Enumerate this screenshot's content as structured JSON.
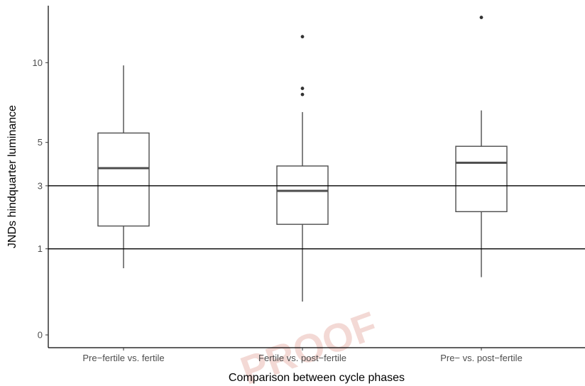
{
  "chart_data": {
    "type": "box",
    "title": "",
    "xlabel": "Comparison between cycle phases",
    "ylabel": "JNDs hindquarter luminance",
    "ylim": [
      -0.5,
      14.5
    ],
    "yticks": [
      0,
      1,
      3,
      5,
      10
    ],
    "grid": false,
    "legend": "none",
    "reference_lines": [
      1,
      3
    ],
    "watermark": "PROOF",
    "categories": [
      "Pre−fertile vs. fertile",
      "Fertile vs. post−fertile",
      "Pre− vs. post−fertile"
    ],
    "boxes": [
      {
        "whisker_low": 0.6,
        "q1": 1.6,
        "median": 3.75,
        "q3": 5.5,
        "whisker_high": 9.8,
        "outliers": []
      },
      {
        "whisker_low": 0.15,
        "q1": 1.65,
        "median": 2.8,
        "q3": 3.85,
        "whisker_high": 6.7,
        "outliers": [
          7.8,
          8.2,
          12.0
        ]
      },
      {
        "whisker_low": 0.45,
        "q1": 2.05,
        "median": 4.0,
        "q3": 4.8,
        "whisker_high": 6.8,
        "outliers": [
          13.6
        ]
      }
    ],
    "colors": {
      "box": "#4d4d4d",
      "median": "#4d4d4d",
      "reference": "#000000",
      "axis": "#000000"
    }
  }
}
